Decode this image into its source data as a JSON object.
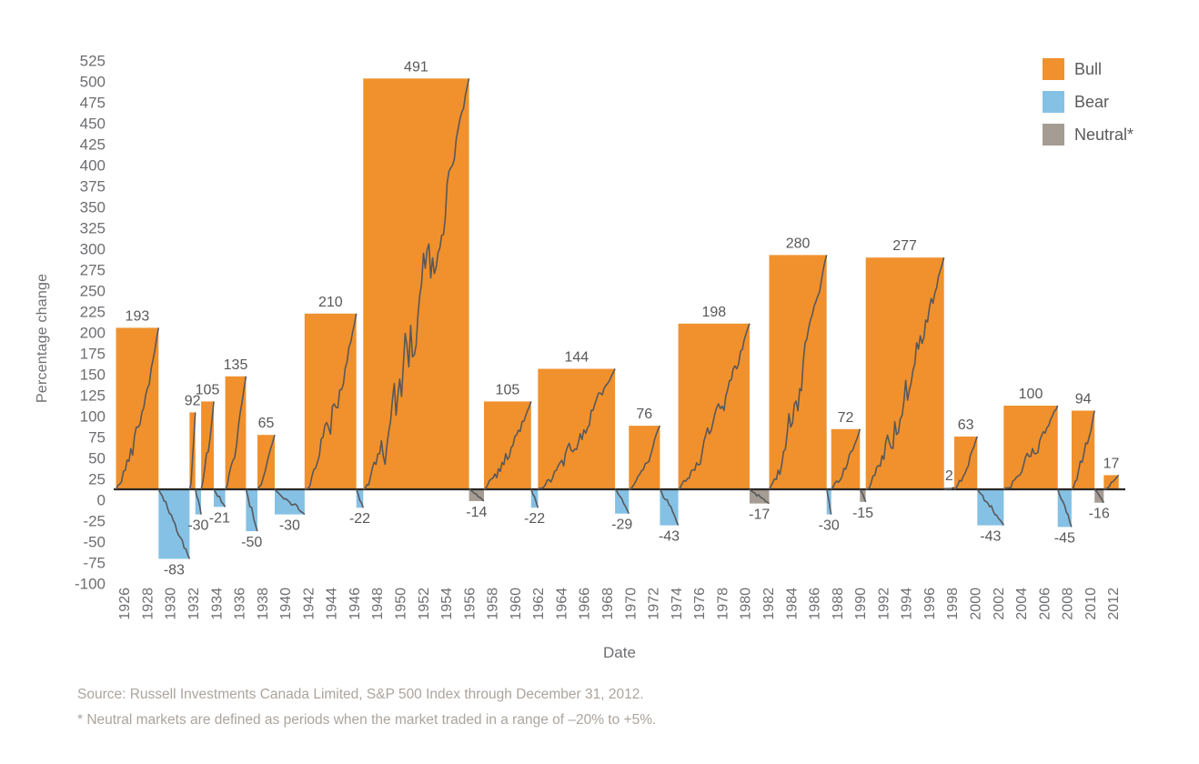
{
  "chart_data": {
    "type": "bar",
    "title": "",
    "xlabel": "Date",
    "ylabel": "Percentage change",
    "ylim": [
      -100,
      525
    ],
    "ytick_step": 25,
    "grid": false,
    "legend_position": "top-right",
    "overlay_line": "cumulative percentage-change path, restarting at 0 for each market segment",
    "yticks": [
      525,
      500,
      475,
      450,
      425,
      400,
      375,
      350,
      325,
      300,
      275,
      250,
      225,
      200,
      175,
      150,
      125,
      100,
      75,
      50,
      25,
      0,
      -25,
      -50,
      -75,
      -100
    ],
    "xticks": [
      1926,
      1928,
      1930,
      1932,
      1934,
      1936,
      1938,
      1940,
      1942,
      1944,
      1946,
      1948,
      1950,
      1952,
      1954,
      1956,
      1958,
      1960,
      1962,
      1964,
      1966,
      1968,
      1970,
      1972,
      1974,
      1976,
      1978,
      1980,
      1982,
      1984,
      1986,
      1988,
      1990,
      1992,
      1994,
      1996,
      1998,
      2000,
      2002,
      2004,
      2006,
      2008,
      2010,
      2012
    ],
    "legend": [
      {
        "label": "Bull",
        "type": "bull"
      },
      {
        "label": "Bear",
        "type": "bear"
      },
      {
        "label": "Neutral*",
        "type": "neutral"
      }
    ],
    "segments": [
      {
        "start": 1925.2,
        "end": 1928.9,
        "value": 193,
        "type": "bull"
      },
      {
        "start": 1928.9,
        "end": 1931.6,
        "value": -83,
        "type": "bear"
      },
      {
        "start": 1931.6,
        "end": 1932.1,
        "value": 92,
        "type": "bull"
      },
      {
        "start": 1932.1,
        "end": 1932.6,
        "value": -30,
        "type": "bear"
      },
      {
        "start": 1932.6,
        "end": 1933.7,
        "value": 105,
        "type": "bull"
      },
      {
        "start": 1933.7,
        "end": 1934.7,
        "value": -21,
        "type": "bear"
      },
      {
        "start": 1934.7,
        "end": 1936.5,
        "value": 135,
        "type": "bull"
      },
      {
        "start": 1936.5,
        "end": 1937.5,
        "value": -50,
        "type": "bear"
      },
      {
        "start": 1937.5,
        "end": 1939.0,
        "value": 65,
        "type": "bull"
      },
      {
        "start": 1939.0,
        "end": 1941.6,
        "value": -30,
        "type": "bear"
      },
      {
        "start": 1941.6,
        "end": 1946.1,
        "value": 210,
        "type": "bull"
      },
      {
        "start": 1946.1,
        "end": 1946.7,
        "value": -22,
        "type": "bear"
      },
      {
        "start": 1946.7,
        "end": 1955.9,
        "value": 491,
        "type": "bull"
      },
      {
        "start": 1955.9,
        "end": 1957.2,
        "value": -14,
        "type": "neutral"
      },
      {
        "start": 1957.2,
        "end": 1961.3,
        "value": 105,
        "type": "bull"
      },
      {
        "start": 1961.3,
        "end": 1961.9,
        "value": -22,
        "type": "bear"
      },
      {
        "start": 1961.9,
        "end": 1968.6,
        "value": 144,
        "type": "bull"
      },
      {
        "start": 1968.6,
        "end": 1969.8,
        "value": -29,
        "type": "bear"
      },
      {
        "start": 1969.8,
        "end": 1972.5,
        "value": 76,
        "type": "bull"
      },
      {
        "start": 1972.5,
        "end": 1974.1,
        "value": -43,
        "type": "bear"
      },
      {
        "start": 1974.1,
        "end": 1980.3,
        "value": 198,
        "type": "bull"
      },
      {
        "start": 1980.3,
        "end": 1982.0,
        "value": -17,
        "type": "neutral"
      },
      {
        "start": 1982.0,
        "end": 1987.0,
        "value": 280,
        "type": "bull"
      },
      {
        "start": 1987.0,
        "end": 1987.4,
        "value": -30,
        "type": "bear"
      },
      {
        "start": 1987.4,
        "end": 1989.9,
        "value": 72,
        "type": "bull"
      },
      {
        "start": 1989.9,
        "end": 1990.4,
        "value": -15,
        "type": "neutral"
      },
      {
        "start": 1990.4,
        "end": 1997.2,
        "value": 277,
        "type": "bull"
      },
      {
        "start": 1997.2,
        "end": 1998.1,
        "value": 2,
        "type": "neutral"
      },
      {
        "start": 1998.1,
        "end": 2000.1,
        "value": 63,
        "type": "bull"
      },
      {
        "start": 2000.1,
        "end": 2002.4,
        "value": -43,
        "type": "bear"
      },
      {
        "start": 2002.4,
        "end": 2007.1,
        "value": 100,
        "type": "bull"
      },
      {
        "start": 2007.1,
        "end": 2008.3,
        "value": -45,
        "type": "bear"
      },
      {
        "start": 2008.3,
        "end": 2010.3,
        "value": 94,
        "type": "bull"
      },
      {
        "start": 2010.3,
        "end": 2011.1,
        "value": -16,
        "type": "neutral"
      },
      {
        "start": 2011.1,
        "end": 2012.4,
        "value": 17,
        "type": "bull"
      }
    ]
  },
  "colors": {
    "bull": "#F0912D",
    "bear": "#85C1E5",
    "neutral": "#A59C93",
    "line": "#58585A",
    "axis": "#2B2826",
    "tick_text": "#6D6E71",
    "value_text": "#58585B",
    "source_text": "#ABA49E"
  },
  "footer": {
    "source": "Source: Russell Investments Canada Limited, S&P 500 Index through December 31, 2012.",
    "footnote": "* Neutral markets are defined as periods when the market traded in a range of –20% to +5%."
  }
}
